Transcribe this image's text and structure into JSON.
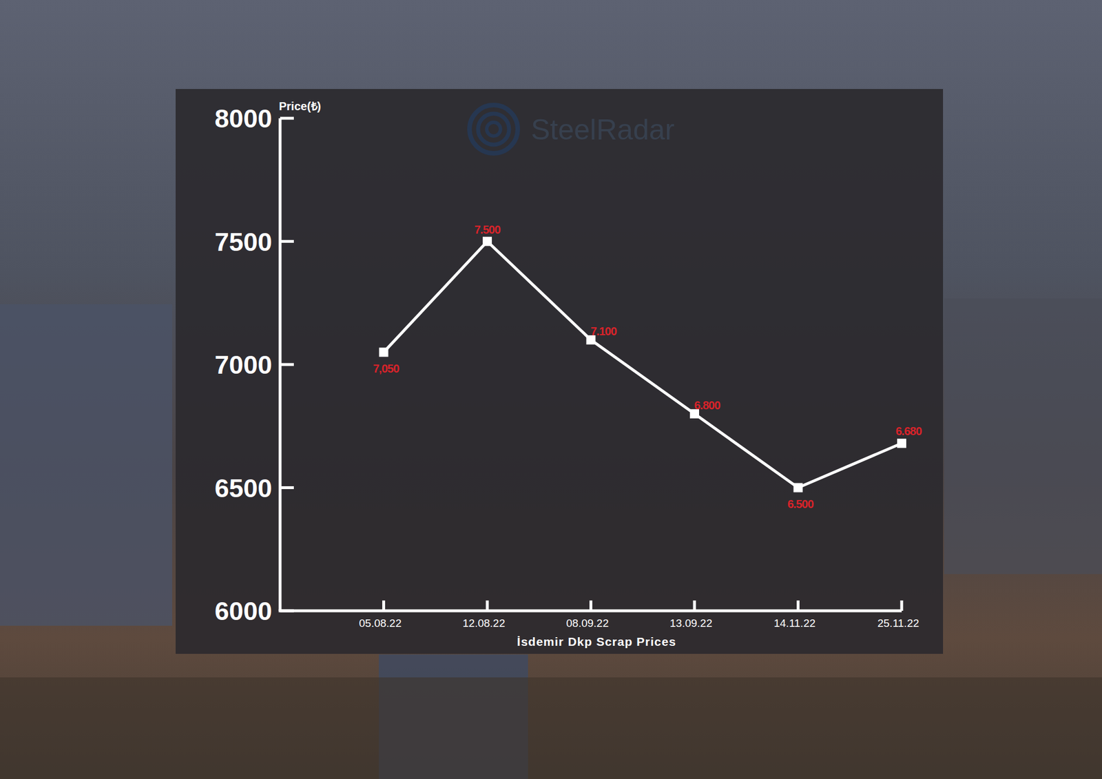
{
  "chart_data": {
    "type": "line",
    "y_label": "Price(₺)",
    "x_label": "İsdemir Dkp Scrap Prices",
    "watermark": "SteelRadar",
    "categories": [
      "05.08.22",
      "12.08.22",
      "08.09.22",
      "13.09.22",
      "14.11.22",
      "25.11.22"
    ],
    "values": [
      7050,
      7500,
      7100,
      6800,
      6500,
      6680
    ],
    "value_labels": [
      "7,050",
      "7.500",
      "7.100",
      "6.800",
      "6.500",
      "6.680"
    ],
    "color": "#ffffff",
    "marker": "square",
    "line_style": "solid",
    "ylim": [
      6000,
      8000
    ],
    "yticks": [
      6000,
      6500,
      7000,
      7500,
      8000
    ],
    "data_labels": true,
    "grid": false
  }
}
